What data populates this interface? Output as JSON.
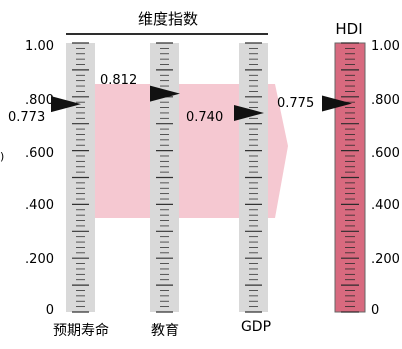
{
  "header": {
    "group_label": "维度指数",
    "hdi_label": "HDI"
  },
  "scale_labels": {
    "left": [
      "1.00",
      ".800",
      ".600",
      ".400",
      ".200",
      "0"
    ],
    "right": [
      "1.00",
      ".800",
      ".600",
      ".400",
      ".200",
      "0"
    ]
  },
  "dimensions": [
    {
      "label": "预期寿命",
      "value_label": "0.773",
      "value": 0.773
    },
    {
      "label": "教育",
      "value_label": "0.812",
      "value": 0.812
    },
    {
      "label": "GDP",
      "value_label": "0.740",
      "value": 0.74
    }
  ],
  "hdi": {
    "value_label": "0.775",
    "value": 0.775
  },
  "colors": {
    "gray_bar": "#d9d9d9",
    "hdi_bar": "#d86a7f",
    "band": "#f5c8d1",
    "pointer": "#111111"
  }
}
